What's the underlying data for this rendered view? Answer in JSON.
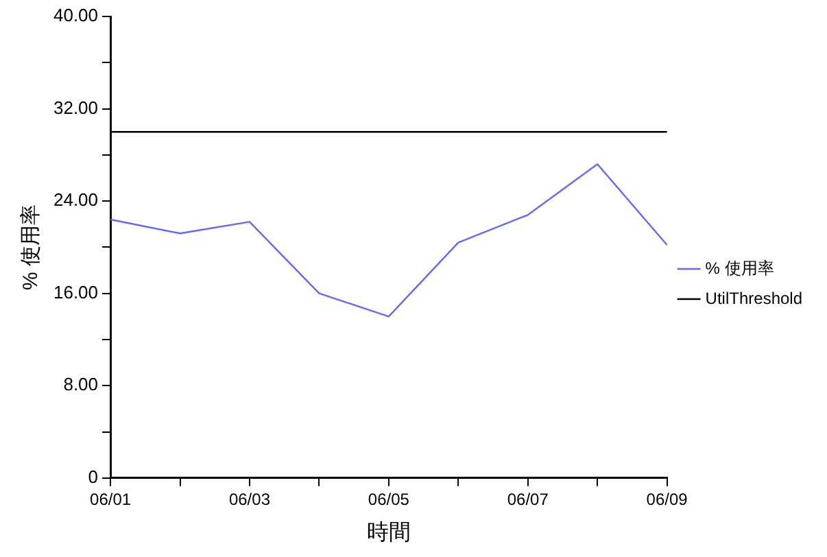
{
  "chart_data": {
    "type": "line",
    "xlabel": "時間",
    "ylabel": "% 使用率",
    "categories": [
      "06/01",
      null,
      "06/03",
      null,
      "06/05",
      null,
      "06/07",
      null,
      "06/09"
    ],
    "series": [
      {
        "name": "% 使用率",
        "color": "#6666ff",
        "values": [
          22.4,
          21.2,
          22.2,
          16.0,
          14.0,
          20.4,
          22.8,
          27.2,
          20.2
        ]
      },
      {
        "name": "UtilThreshold",
        "color": "#000000",
        "values": [
          30,
          30,
          30,
          30,
          30,
          30,
          30,
          30,
          30
        ]
      }
    ],
    "ylim": [
      0,
      40
    ],
    "yticks": [
      {
        "value": 0,
        "label": "0"
      },
      {
        "value": 4,
        "label": null
      },
      {
        "value": 8,
        "label": "8.00"
      },
      {
        "value": 12,
        "label": null
      },
      {
        "value": 16,
        "label": "16.00"
      },
      {
        "value": 20,
        "label": null
      },
      {
        "value": 24,
        "label": "24.00"
      },
      {
        "value": 28,
        "label": null
      },
      {
        "value": 32,
        "label": "32.00"
      },
      {
        "value": 36,
        "label": null
      },
      {
        "value": 40,
        "label": "40.00"
      }
    ],
    "grid": false,
    "legend": "right",
    "marker": "none",
    "line_style": "solid"
  }
}
